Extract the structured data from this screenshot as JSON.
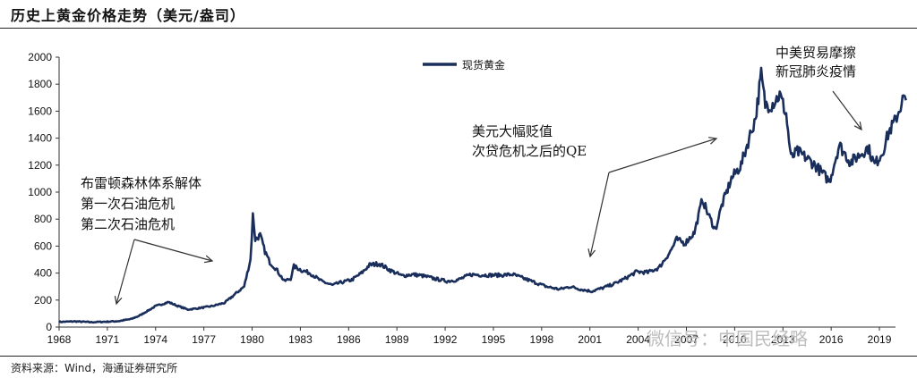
{
  "header": {
    "title": "历史上黄金价格走势（美元/盎司）"
  },
  "footer": {
    "source": "资料来源：Wind，海通证券研究所"
  },
  "watermark": {
    "text": "微信号：中国民经略"
  },
  "chart_data": {
    "type": "line",
    "title": "历史上黄金价格走势（美元/盎司）",
    "ylim": [
      0,
      2000
    ],
    "yticks": [
      0,
      200,
      400,
      600,
      800,
      1000,
      1200,
      1400,
      1600,
      1800,
      2000
    ],
    "xlim": [
      1968,
      2020
    ],
    "xticks": [
      1968,
      1971,
      1974,
      1977,
      1980,
      1983,
      1986,
      1989,
      1992,
      1995,
      1998,
      2001,
      2004,
      2007,
      2010,
      2013,
      2016,
      2019
    ],
    "legend": {
      "position": "top-center",
      "entries": [
        "现货黄金"
      ]
    },
    "series_color": "#1a2e5c",
    "series": [
      {
        "name": "现货黄金",
        "x": [
          1968,
          1969,
          1970,
          1971,
          1971.7,
          1972.5,
          1973,
          1973.5,
          1974,
          1974.8,
          1975.3,
          1976,
          1976.7,
          1977.5,
          1978.3,
          1978.9,
          1979.5,
          1979.9,
          1980.05,
          1980.2,
          1980.5,
          1980.8,
          1981.1,
          1981.5,
          1982,
          1982.4,
          1982.6,
          1983.1,
          1983.6,
          1984.3,
          1985,
          1985.5,
          1986.2,
          1986.8,
          1987.3,
          1987.9,
          1988.6,
          1989.3,
          1990,
          1990.6,
          1991.3,
          1992.1,
          1992.8,
          1993.6,
          1994.5,
          1995.5,
          1996.2,
          1996.9,
          1997.6,
          1998.3,
          1999.1,
          1999.8,
          2000.4,
          2001.1,
          2001.8,
          2002.5,
          2003.2,
          2003.9,
          2004.6,
          2005.3,
          2006,
          2006.4,
          2006.9,
          2007.5,
          2008,
          2008.3,
          2008.8,
          2009.2,
          2009.8,
          2010.4,
          2010.9,
          2011.3,
          2011.65,
          2011.9,
          2012.3,
          2012.8,
          2013.2,
          2013.5,
          2013.9,
          2014.5,
          2015,
          2015.9,
          2016.5,
          2017.2,
          2017.8,
          2018.3,
          2018.7,
          2019.2,
          2019.6,
          2019.95,
          2020.2,
          2020.5,
          2020.65
        ],
        "values": [
          38,
          42,
          36,
          40,
          44,
          60,
          85,
          120,
          155,
          185,
          160,
          130,
          140,
          155,
          180,
          240,
          300,
          500,
          830,
          650,
          680,
          560,
          480,
          430,
          340,
          360,
          450,
          420,
          400,
          340,
          310,
          330,
          350,
          400,
          460,
          470,
          420,
          380,
          390,
          380,
          360,
          340,
          350,
          390,
          385,
          385,
          390,
          360,
          330,
          300,
          280,
          300,
          280,
          265,
          290,
          320,
          360,
          410,
          405,
          440,
          560,
          650,
          620,
          700,
          950,
          850,
          720,
          900,
          1100,
          1200,
          1400,
          1550,
          1870,
          1650,
          1650,
          1720,
          1580,
          1250,
          1300,
          1250,
          1200,
          1080,
          1350,
          1220,
          1280,
          1330,
          1200,
          1300,
          1450,
          1520,
          1600,
          1700,
          1680
        ]
      }
    ],
    "annotations": [
      {
        "lines": [
          "布雷顿森林体系解体",
          "第一次石油危机",
          "第二次石油危机"
        ]
      },
      {
        "lines": [
          "美元大幅贬值",
          "次贷危机之后的QE"
        ]
      },
      {
        "lines": [
          "中美贸易摩擦",
          "新冠肺炎疫情"
        ]
      }
    ]
  }
}
